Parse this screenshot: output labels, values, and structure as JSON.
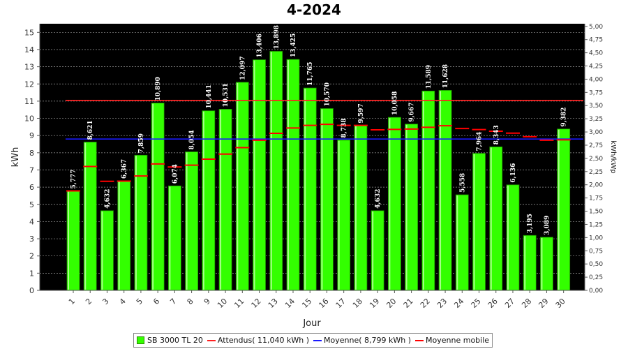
{
  "chart_data": {
    "type": "bar",
    "title": "4-2024",
    "xlabel": "Jour",
    "ylabel": "kWh",
    "y2label": "kWh/kWp",
    "ylim": [
      0,
      15.5
    ],
    "y2lim": [
      0,
      5.05
    ],
    "yticks": [
      0,
      1,
      2,
      3,
      4,
      5,
      6,
      7,
      8,
      9,
      10,
      11,
      12,
      13,
      14,
      15
    ],
    "y2ticks": [
      "0,00",
      "0,25",
      "0,50",
      "0,75",
      "1,00",
      "1,25",
      "1,50",
      "1,75",
      "2,00",
      "2,25",
      "2,50",
      "2,75",
      "3,00",
      "3,25",
      "3,50",
      "3,75",
      "4,00",
      "4,25",
      "4,50",
      "4,75",
      "5,00"
    ],
    "categories": [
      "1",
      "2",
      "3",
      "4",
      "5",
      "6",
      "7",
      "8",
      "9",
      "10",
      "11",
      "12",
      "13",
      "14",
      "15",
      "16",
      "17",
      "18",
      "19",
      "20",
      "21",
      "22",
      "23",
      "24",
      "25",
      "26",
      "27",
      "28",
      "29",
      "30"
    ],
    "series": [
      {
        "name": "SB 3000 TL 20",
        "type": "bar",
        "color": "#33ff00",
        "values": [
          5.777,
          8.621,
          4.632,
          6.367,
          7.859,
          10.89,
          6.074,
          8.054,
          10.441,
          10.531,
          12.097,
          13.406,
          13.898,
          13.425,
          11.765,
          10.57,
          8.738,
          9.597,
          4.632,
          10.058,
          9.667,
          11.589,
          11.628,
          5.558,
          7.964,
          8.343,
          6.136,
          3.195,
          3.089,
          9.382
        ],
        "labels": [
          "5,777",
          "8,621",
          "4,632",
          "6,367",
          "7,859",
          "10,890",
          "6,074",
          "8,054",
          "10,441",
          "10,531",
          "12,097",
          "13,406",
          "13,898",
          "13,425",
          "11,765",
          "10,570",
          "8,738",
          "9,597",
          "4,632",
          "10,058",
          "9,667",
          "11,589",
          "11,628",
          "5,558",
          "7,964",
          "8,343",
          "6,136",
          "3,195",
          "3,089",
          "9,382"
        ]
      },
      {
        "name": "Attendus( 11,040 kWh )",
        "type": "line",
        "color": "#ff2020",
        "value": 11.04
      },
      {
        "name": "Moyenne( 8,799 kWh )",
        "type": "line",
        "color": "#1a1aff",
        "value": 8.799
      },
      {
        "name": "Moyenne mobile",
        "type": "step",
        "color": "#ff0000",
        "values": [
          5.78,
          7.2,
          6.34,
          6.35,
          6.65,
          7.35,
          7.17,
          7.28,
          7.63,
          7.92,
          8.3,
          8.73,
          9.13,
          9.44,
          9.59,
          9.65,
          9.59,
          9.59,
          9.33,
          9.36,
          9.38,
          9.48,
          9.57,
          9.41,
          9.35,
          9.25,
          9.14,
          8.93,
          8.73,
          8.75
        ]
      }
    ],
    "grid": true,
    "legend": "bottom"
  }
}
